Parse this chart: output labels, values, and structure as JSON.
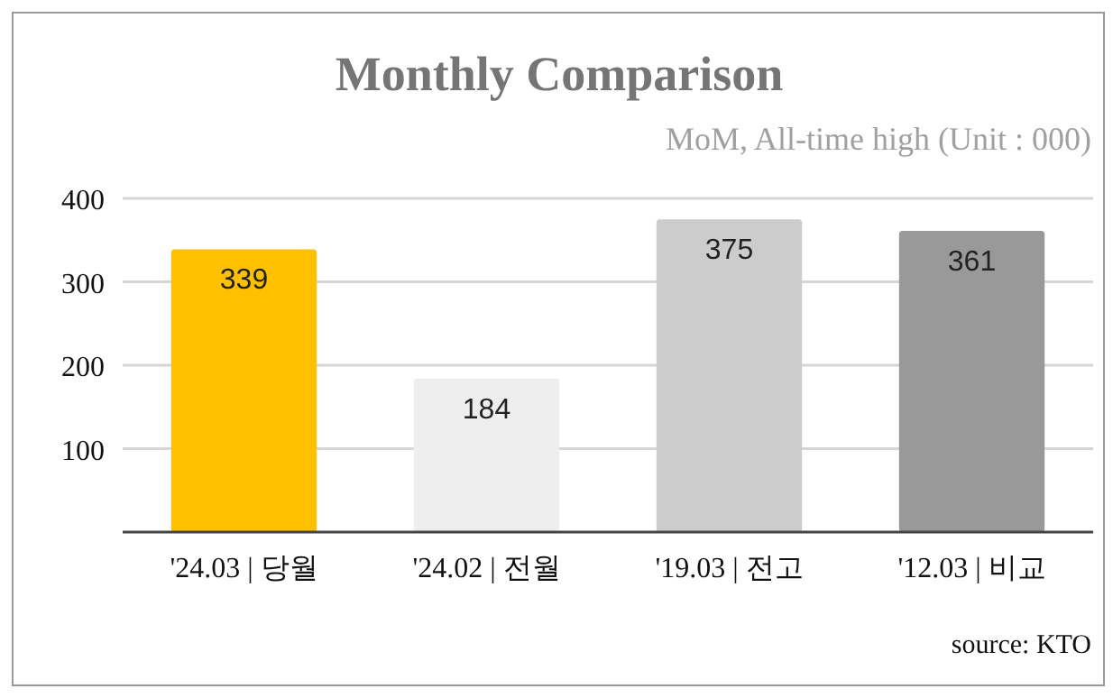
{
  "chart_data": {
    "type": "bar",
    "title": "Monthly Comparison",
    "subtitle": "MoM, All-time high (Unit : 000)",
    "categories": [
      "'24.03 | 당월",
      "'24.02 | 전월",
      "'19.03 | 전고",
      "'12.03 | 비교"
    ],
    "values": [
      339,
      184,
      375,
      361
    ],
    "colors": [
      "#ffc000",
      "#eeeeee",
      "#cccccc",
      "#999999"
    ],
    "ylim": [
      0,
      400
    ],
    "yticks": [
      100,
      200,
      300,
      400
    ],
    "grid": "y",
    "data_labels": true,
    "annotations": [
      "source: KTO"
    ]
  }
}
